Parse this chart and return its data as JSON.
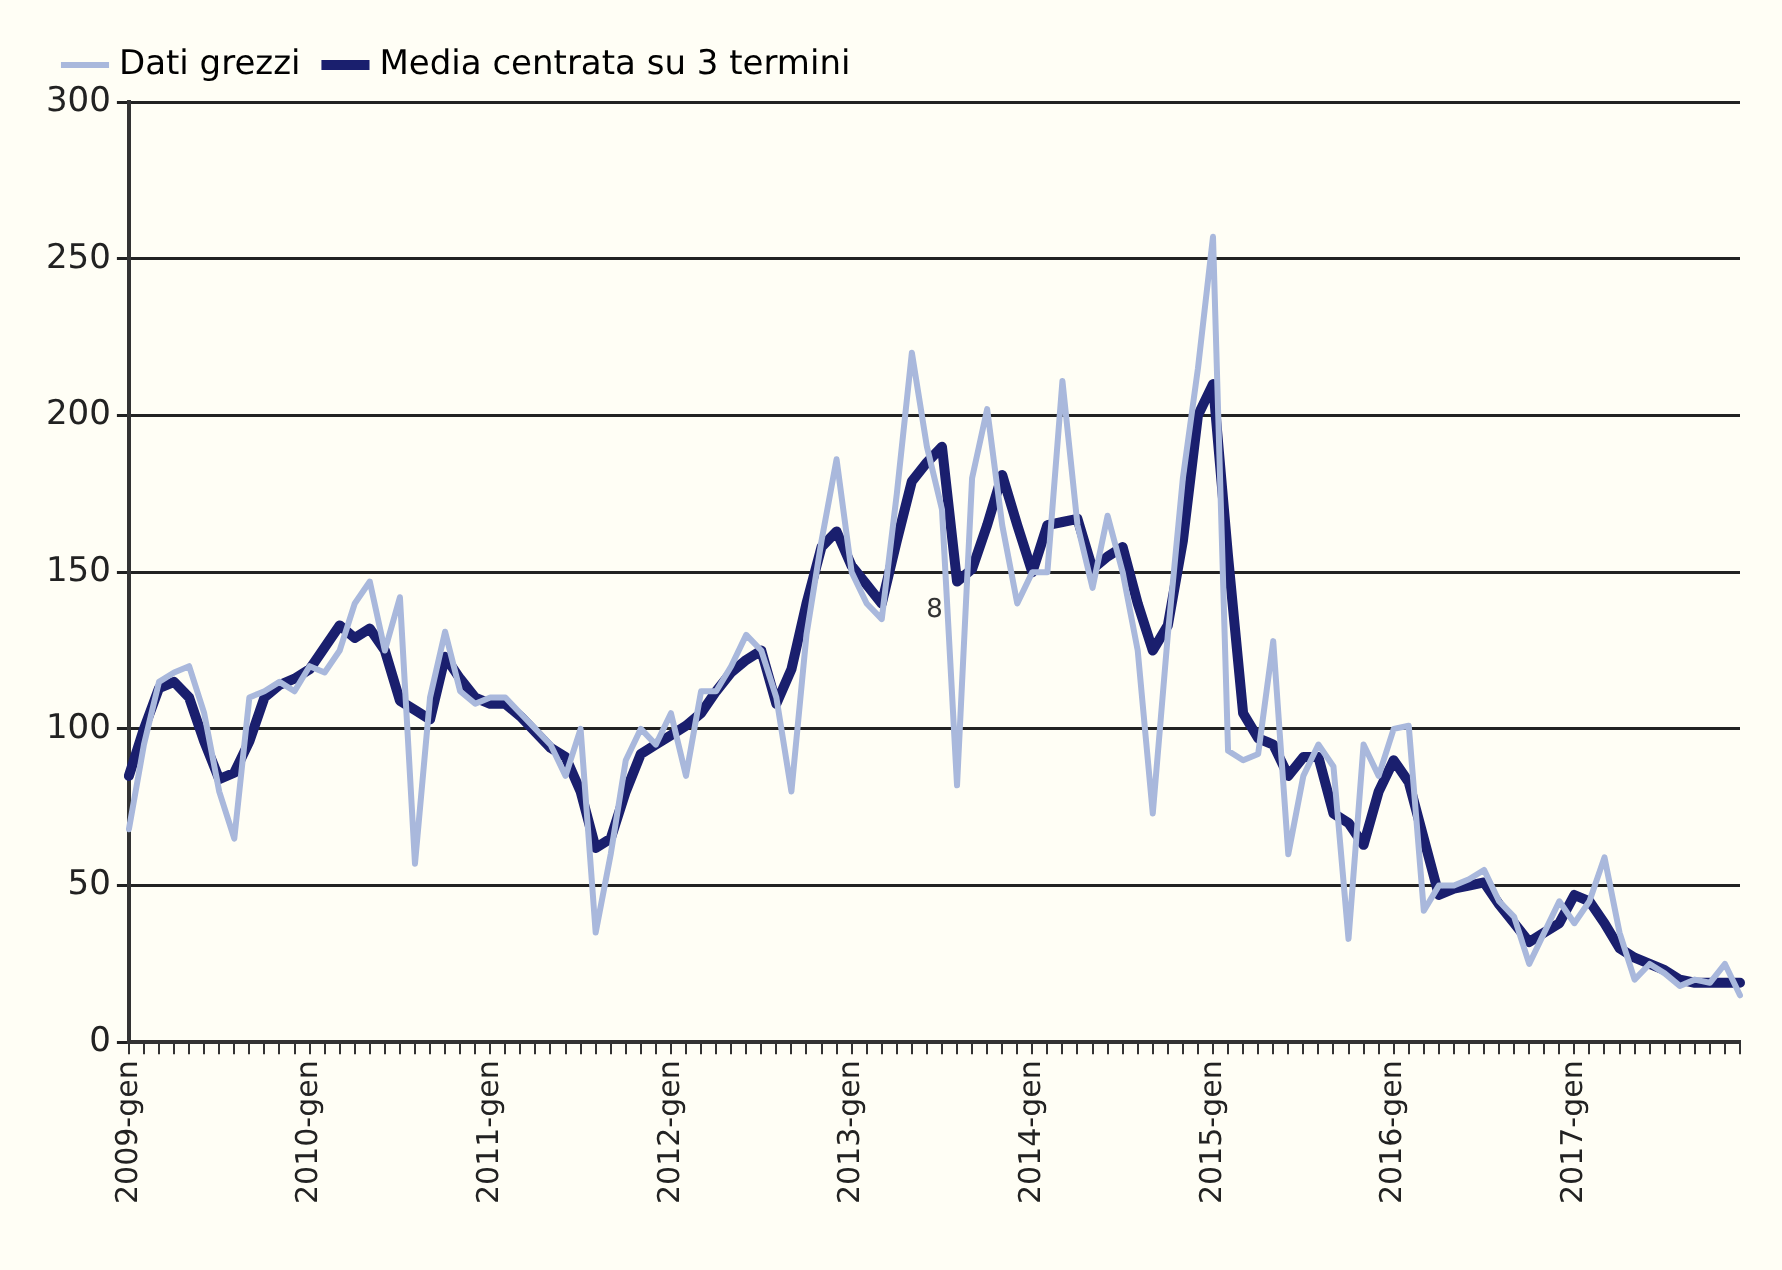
{
  "chart_data": {
    "type": "line",
    "categories": [
      "2009-gen",
      null,
      null,
      null,
      null,
      null,
      null,
      null,
      null,
      null,
      null,
      null,
      "2010-gen",
      null,
      null,
      null,
      null,
      null,
      null,
      null,
      null,
      null,
      null,
      null,
      "2011-gen",
      null,
      null,
      null,
      null,
      null,
      null,
      null,
      null,
      null,
      null,
      null,
      "2012-gen",
      null,
      null,
      null,
      null,
      null,
      null,
      null,
      null,
      null,
      null,
      null,
      "2013-gen",
      null,
      null,
      null,
      null,
      null,
      null,
      null,
      null,
      null,
      null,
      null,
      "2014-gen",
      null,
      null,
      null,
      null,
      null,
      null,
      null,
      null,
      null,
      null,
      null,
      "2015-gen",
      null,
      null,
      null,
      null,
      null,
      null,
      null,
      null,
      null,
      null,
      null,
      "2016-gen",
      null,
      null,
      null,
      null,
      null,
      null,
      null,
      null,
      null,
      null,
      null,
      "2017-gen",
      null,
      null,
      null,
      null,
      null,
      null,
      null,
      null,
      null,
      null,
      null
    ],
    "series": [
      {
        "name": "Dati grezzi",
        "color": "#a9b8dc",
        "values": [
          68,
          95,
          115,
          118,
          120,
          105,
          80,
          65,
          110,
          112,
          115,
          112,
          120,
          118,
          125,
          140,
          147,
          125,
          142,
          57,
          110,
          131,
          112,
          108,
          110,
          110,
          105,
          100,
          95,
          85,
          100,
          35,
          60,
          90,
          100,
          95,
          105,
          85,
          112,
          112,
          120,
          130,
          125,
          110,
          80,
          130,
          160,
          186,
          150,
          140,
          135,
          175,
          220,
          190,
          170,
          82,
          180,
          202,
          165,
          140,
          150,
          150,
          211,
          165,
          145,
          168,
          150,
          125,
          73,
          130,
          180,
          215,
          257,
          93,
          90,
          92,
          128,
          60,
          85,
          95,
          88,
          33,
          95,
          85,
          100,
          101,
          42,
          50,
          50,
          52,
          55,
          45,
          40,
          25,
          35,
          45,
          38,
          45,
          59,
          35,
          20,
          25,
          22,
          18,
          20,
          19,
          25,
          15
        ]
      },
      {
        "name": "Media centrata su 3 termini",
        "color": "#1a1f6e",
        "values": [
          85,
          100,
          113,
          115,
          110,
          96,
          84,
          86,
          96,
          110,
          114,
          116,
          119,
          126,
          133,
          129,
          132,
          125,
          109,
          106,
          103,
          123,
          116,
          110,
          108,
          108,
          104,
          99,
          94,
          91,
          80,
          62,
          65,
          80,
          92,
          95,
          98,
          101,
          105,
          112,
          118,
          122,
          125,
          108,
          119,
          140,
          158,
          163,
          152,
          146,
          140,
          160,
          179,
          185,
          190,
          147,
          151,
          165,
          181,
          165,
          150,
          165,
          166,
          167,
          151,
          155,
          158,
          140,
          125,
          133,
          160,
          200,
          210,
          155,
          105,
          97,
          95,
          85,
          91,
          91,
          73,
          70,
          63,
          80,
          90,
          83,
          65,
          47,
          49,
          50,
          51,
          44,
          38,
          32,
          35,
          38,
          47,
          45,
          38,
          30,
          27,
          25,
          23,
          20,
          19,
          19,
          19,
          19
        ]
      }
    ],
    "ylim": [
      0,
      300
    ],
    "yticks": [
      0,
      50,
      100,
      150,
      200,
      250,
      300
    ],
    "grid": "y",
    "legend": "top left",
    "marker": "none",
    "line_style": "solid",
    "annotations": [
      "8"
    ]
  }
}
